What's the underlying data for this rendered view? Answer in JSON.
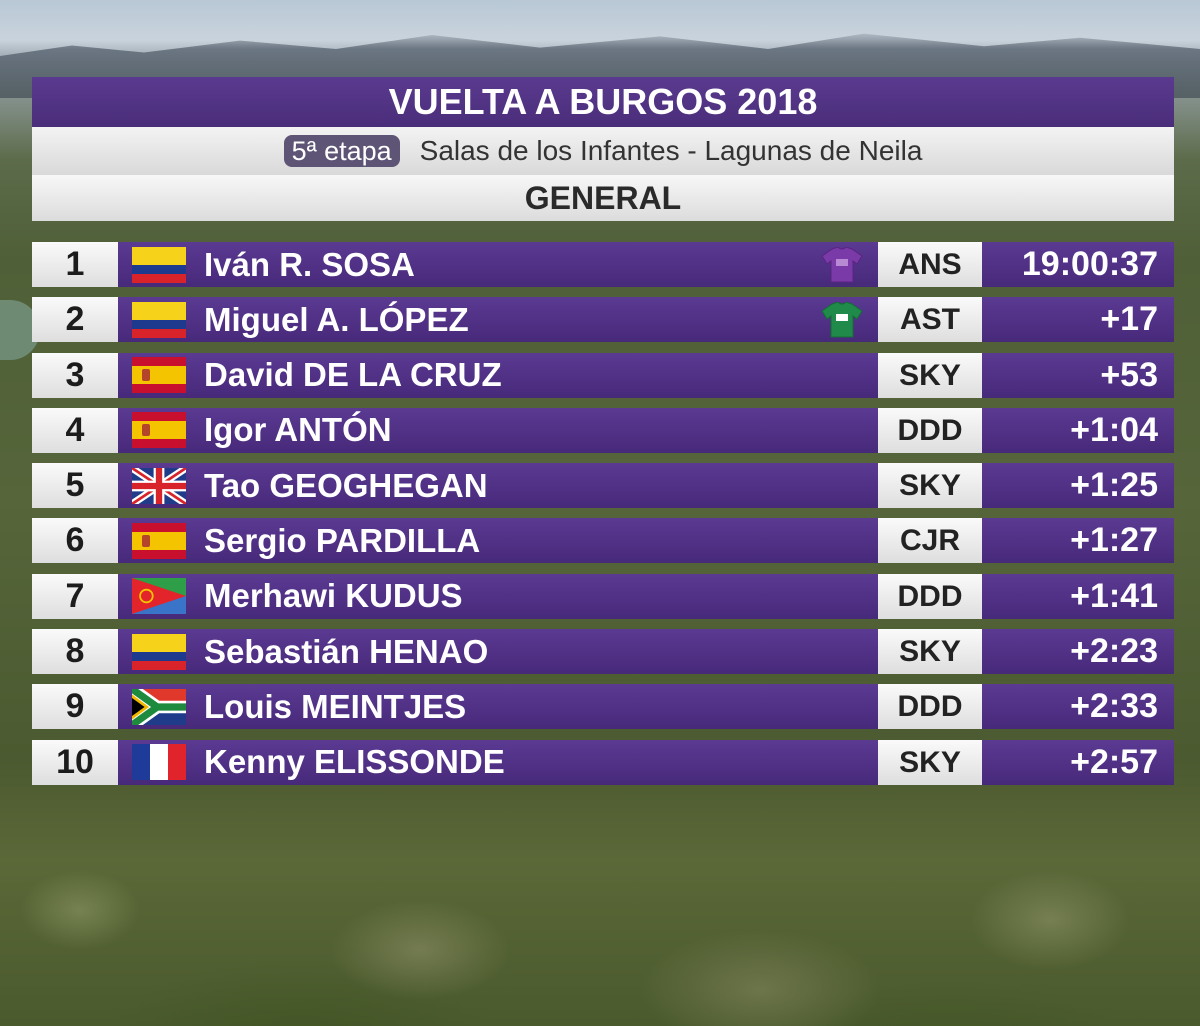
{
  "header": {
    "title": "VUELTA A BURGOS 2018",
    "stage_badge": "5ª etapa",
    "stage_route": "Salas de los Infantes - Lagunas de Neila",
    "classification": "GENERAL"
  },
  "colors": {
    "purple": "#4f3183",
    "light": "#e6e6e6",
    "leader_jersey": "#7a3aa8",
    "mountain_jersey": "#1f8a4a"
  },
  "standings": [
    {
      "pos": "1",
      "flag": "colombia-flag",
      "rider": "Iván R. SOSA",
      "jersey": "purple-jersey-icon",
      "team": "ANS",
      "time": "19:00:37"
    },
    {
      "pos": "2",
      "flag": "colombia-flag",
      "rider": "Miguel A. LÓPEZ",
      "jersey": "green-jersey-icon",
      "team": "AST",
      "time": "+17"
    },
    {
      "pos": "3",
      "flag": "spain-flag",
      "rider": "David DE LA CRUZ",
      "jersey": "",
      "team": "SKY",
      "time": "+53"
    },
    {
      "pos": "4",
      "flag": "spain-flag",
      "rider": "Igor ANTÓN",
      "jersey": "",
      "team": "DDD",
      "time": "+1:04"
    },
    {
      "pos": "5",
      "flag": "united-kingdom-flag",
      "rider": "Tao GEOGHEGAN",
      "jersey": "",
      "team": "SKY",
      "time": "+1:25"
    },
    {
      "pos": "6",
      "flag": "spain-flag",
      "rider": "Sergio PARDILLA",
      "jersey": "",
      "team": "CJR",
      "time": "+1:27"
    },
    {
      "pos": "7",
      "flag": "eritrea-flag",
      "rider": "Merhawi KUDUS",
      "jersey": "",
      "team": "DDD",
      "time": "+1:41"
    },
    {
      "pos": "8",
      "flag": "colombia-flag",
      "rider": "Sebastián HENAO",
      "jersey": "",
      "team": "SKY",
      "time": "+2:23"
    },
    {
      "pos": "9",
      "flag": "south-africa-flag",
      "rider": "Louis MEINTJES",
      "jersey": "",
      "team": "DDD",
      "time": "+2:33"
    },
    {
      "pos": "10",
      "flag": "france-flag",
      "rider": "Kenny ELISSONDE",
      "jersey": "",
      "team": "SKY",
      "time": "+2:57"
    }
  ]
}
